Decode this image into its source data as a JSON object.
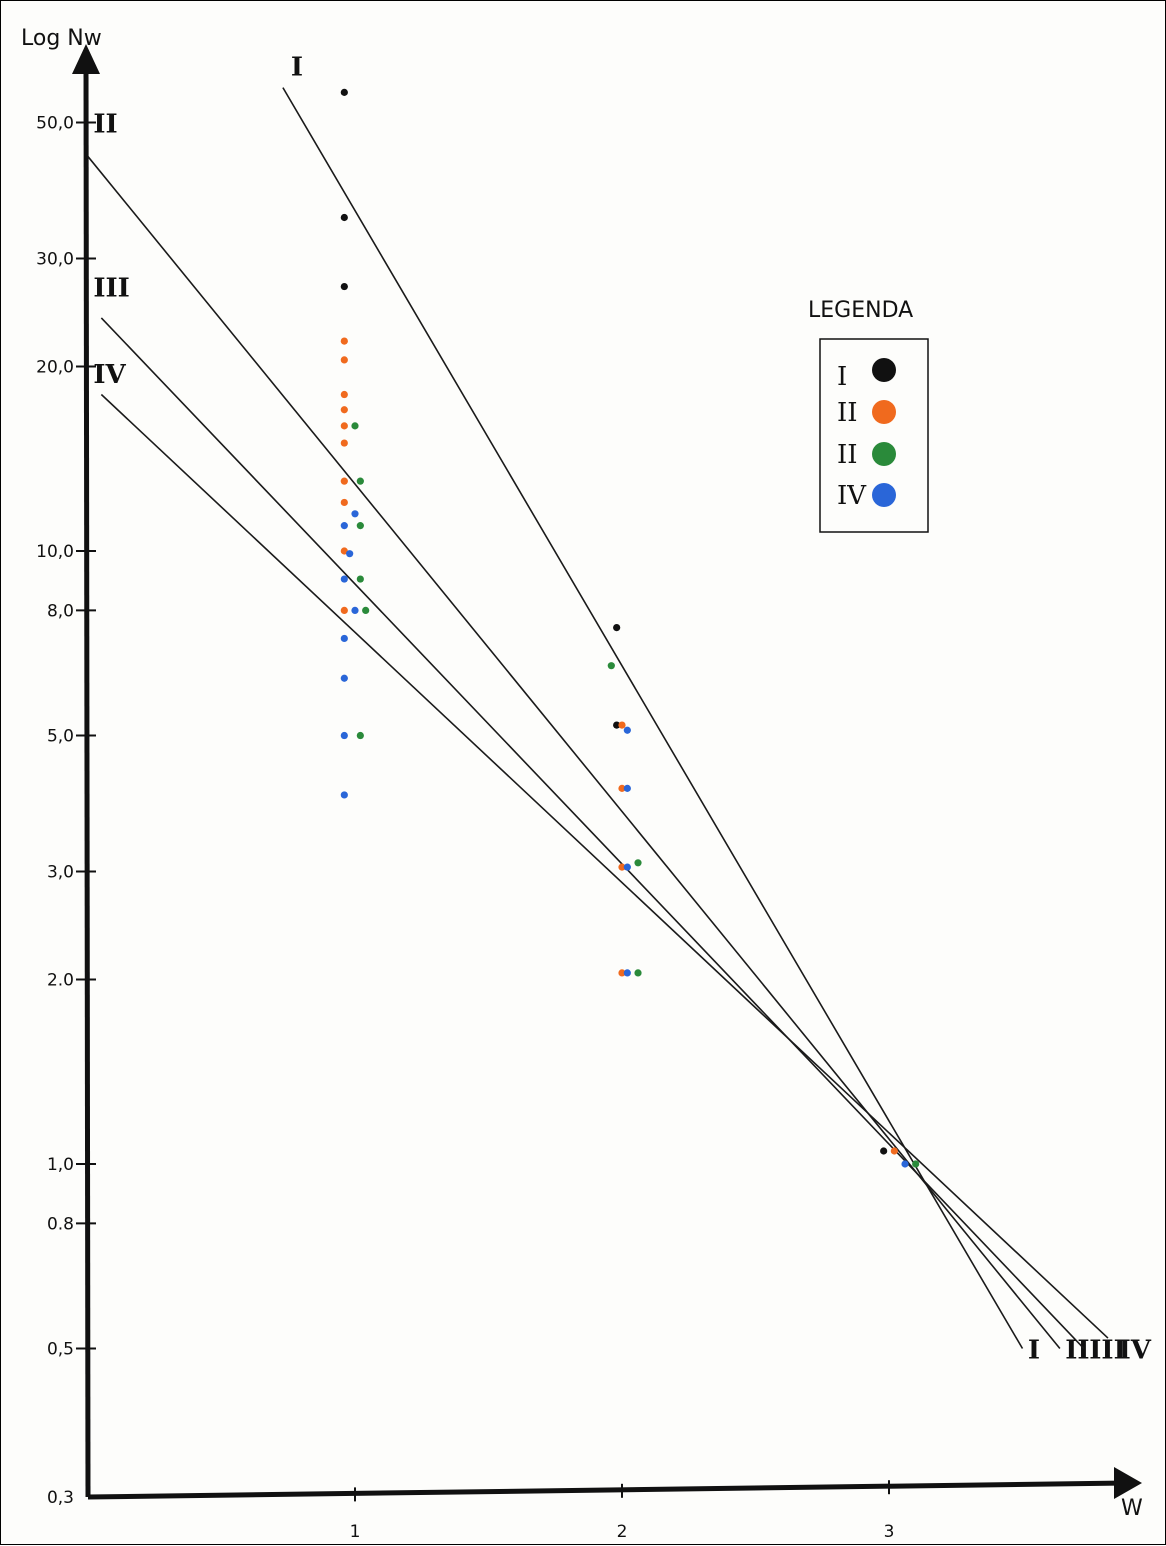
{
  "chart_data": {
    "type": "scatter",
    "title": "",
    "xlabel": "W",
    "ylabel": "Log Nw",
    "y_scale": "log",
    "xlim": [
      0,
      3.9
    ],
    "ylim": [
      0.3,
      60
    ],
    "x_ticks": [
      {
        "value": 1,
        "label": "1"
      },
      {
        "value": 2,
        "label": "2"
      },
      {
        "value": 3,
        "label": "3"
      }
    ],
    "y_ticks": [
      {
        "value": 0.3,
        "label": "0,3"
      },
      {
        "value": 0.5,
        "label": "0,5"
      },
      {
        "value": 0.8,
        "label": "0.8"
      },
      {
        "value": 1.0,
        "label": "1,0"
      },
      {
        "value": 2.0,
        "label": "2.0"
      },
      {
        "value": 3.0,
        "label": "3,0"
      },
      {
        "value": 5.0,
        "label": "5,0"
      },
      {
        "value": 8.0,
        "label": "8,0"
      },
      {
        "value": 10.0,
        "label": "10,0"
      },
      {
        "value": 20.0,
        "label": "20,0"
      },
      {
        "value": 30.0,
        "label": "30,0"
      },
      {
        "value": 50.0,
        "label": "50,0"
      }
    ],
    "legend": {
      "title": "LEGENDA",
      "placement": "right",
      "entries": [
        {
          "label": "I",
          "color": "#111111"
        },
        {
          "label": "II",
          "color": "#f06a1e"
        },
        {
          "label": "II",
          "color": "#2a8a3a"
        },
        {
          "label": "IV",
          "color": "#2a66d8"
        }
      ]
    },
    "series": [
      {
        "label": "I",
        "color": "#111111",
        "points": [
          [
            0.96,
            56
          ],
          [
            0.96,
            35
          ],
          [
            0.96,
            27
          ],
          [
            1.98,
            7.5
          ],
          [
            1.98,
            5.2
          ],
          [
            2.98,
            1.05
          ]
        ],
        "line": {
          "x1": 0.73,
          "y1": 57,
          "x2": 3.5,
          "y2": 0.5
        },
        "line_labels": [
          {
            "text": "I",
            "x": 0.76,
            "y": 62
          },
          {
            "text": "I",
            "x": 3.52,
            "y": 0.5
          }
        ]
      },
      {
        "label": "II",
        "color": "#f06a1e",
        "points": [
          [
            0.96,
            22
          ],
          [
            0.96,
            20.5
          ],
          [
            0.96,
            18
          ],
          [
            0.96,
            17
          ],
          [
            0.96,
            16
          ],
          [
            0.96,
            15
          ],
          [
            0.96,
            13
          ],
          [
            0.96,
            12
          ],
          [
            0.96,
            10
          ],
          [
            0.96,
            8
          ],
          [
            2.0,
            5.2
          ],
          [
            2.0,
            4.1
          ],
          [
            2.0,
            3.05
          ],
          [
            2.0,
            2.05
          ],
          [
            3.02,
            1.05
          ]
        ],
        "line": {
          "x1": 0.0,
          "y1": 44,
          "x2": 3.64,
          "y2": 0.5
        },
        "line_labels": [
          {
            "text": "II",
            "x": 0.02,
            "y": 50
          },
          {
            "text": "II",
            "x": 3.66,
            "y": 0.5
          }
        ]
      },
      {
        "label": "II",
        "color": "#2a8a3a",
        "points": [
          [
            1.0,
            16
          ],
          [
            1.02,
            13
          ],
          [
            1.02,
            11
          ],
          [
            1.02,
            9
          ],
          [
            1.04,
            8
          ],
          [
            1.02,
            5
          ],
          [
            1.96,
            6.5
          ],
          [
            2.06,
            3.1
          ],
          [
            2.06,
            2.05
          ],
          [
            3.1,
            1.0
          ]
        ],
        "line": {
          "x1": 0.05,
          "y1": 24,
          "x2": 3.73,
          "y2": 0.5
        },
        "line_labels": [
          {
            "text": "III",
            "x": 0.02,
            "y": 27
          },
          {
            "text": "III",
            "x": 3.75,
            "y": 0.5
          }
        ]
      },
      {
        "label": "IV",
        "color": "#2a66d8",
        "points": [
          [
            0.96,
            11
          ],
          [
            0.98,
            9.9
          ],
          [
            0.96,
            9
          ],
          [
            1.0,
            11.5
          ],
          [
            1.0,
            8
          ],
          [
            0.96,
            7.2
          ],
          [
            0.96,
            6.2
          ],
          [
            0.96,
            5.0
          ],
          [
            0.96,
            4.0
          ],
          [
            2.02,
            5.1
          ],
          [
            2.02,
            4.1
          ],
          [
            2.02,
            3.05
          ],
          [
            2.02,
            2.05
          ],
          [
            3.06,
            1.0
          ]
        ],
        "line": {
          "x1": 0.05,
          "y1": 18,
          "x2": 3.82,
          "y2": 0.52
        },
        "line_labels": [
          {
            "text": "IV",
            "x": 0.02,
            "y": 19.5
          },
          {
            "text": "IV",
            "x": 3.86,
            "y": 0.5
          }
        ]
      }
    ]
  }
}
